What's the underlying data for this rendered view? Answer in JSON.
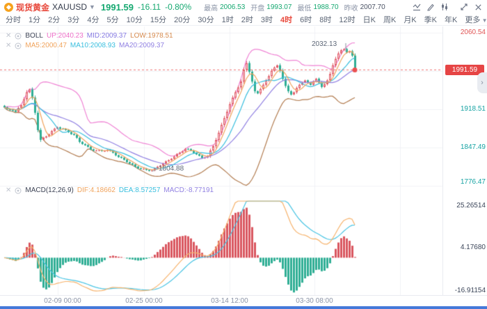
{
  "header": {
    "instrument_cn": "现货黄金",
    "symbol": "XAUUSD",
    "price": "1991.59",
    "change": "-16.11",
    "change_pct": "-0.80%",
    "stats": [
      {
        "label": "最高",
        "value": "2006.53"
      },
      {
        "label": "开盘",
        "value": "1993.07"
      },
      {
        "label": "最低",
        "value": "1988.70"
      },
      {
        "label": "昨收",
        "value": "2007.70"
      }
    ]
  },
  "toolbar": {
    "timeframes": [
      "分时",
      "1分",
      "2分",
      "3分",
      "4分",
      "5分",
      "10分",
      "15分",
      "20分",
      "30分",
      "1时",
      "2时",
      "3时",
      "4时",
      "6时",
      "8时",
      "12时",
      "日K",
      "周K",
      "月K",
      "季K",
      "年K"
    ],
    "active": "4时",
    "more_label": "更多"
  },
  "indicators": {
    "boll": {
      "name": "BOLL",
      "up": "UP:2040.23",
      "mid": "MID:2009.37",
      "low": "LOW:1978.51"
    },
    "ma": {
      "ma5": "MA5:2000.47",
      "ma10": "MA10:2008.93",
      "ma20": "MA20:2009.37"
    },
    "macd": {
      "name": "MACD(12,26,9)",
      "dif": "DIF:4.18662",
      "dea": "DEA:8.57257",
      "macd": "MACD:-8.77191"
    }
  },
  "axes": {
    "price_ticks": [
      "2060.54",
      "1918.51",
      "1847.49",
      "1776.47"
    ],
    "current_price": "1991.59",
    "macd_ticks": [
      "25.26514",
      "4.17680",
      "-16.91154"
    ],
    "time_labels": [
      "02-09 00:00",
      "02-25 00:00",
      "03-14 12:00",
      "03-30 08:00"
    ]
  },
  "annotations": {
    "high_label": "2032.13",
    "low_label": "1804.88"
  },
  "colors": {
    "up": "#e05a66",
    "up_fill": "#f8dfe3",
    "down": "#2fae94",
    "ma5": "#f0a35c",
    "ma10": "#38bede",
    "ma20": "#9181e2",
    "boll_up": "#ef83d4",
    "boll_low": "#b27c50",
    "price_line": "#eb5050",
    "grid": "#f1f2f6",
    "macd_pos": "#d9565f",
    "macd_neg": "#2fae94",
    "dif": "#f6b26b",
    "dea": "#49c4e3"
  },
  "chart_data": [
    {
      "type": "candlestick",
      "title": "现货黄金 XAUUSD 4时",
      "ylim": [
        1776.47,
        2060.54
      ],
      "price_ticks": [
        2060.54,
        1918.51,
        1847.49,
        1776.47
      ],
      "time_labels": [
        "02-09 00:00",
        "02-25 00:00",
        "03-14 12:00",
        "03-30 08:00"
      ],
      "last_price": 1991.59,
      "high_annotation": 2032.13,
      "low_annotation": 1804.88,
      "overlays": {
        "boll": {
          "period": 20,
          "k": 2,
          "up": 2040.23,
          "mid": 2009.37,
          "low": 1978.51
        },
        "ma": {
          "ma5": 2000.47,
          "ma10": 2008.93,
          "ma20": 2009.37
        }
      },
      "closes": [
        1922,
        1919,
        1917,
        1916.5,
        1914,
        1921,
        1926,
        1937,
        1950,
        1955,
        1940,
        1912,
        1880,
        1862,
        1866,
        1868,
        1872,
        1878,
        1882.5,
        1885,
        1882.5,
        1882,
        1880,
        1876,
        1872.5,
        1871,
        1865.5,
        1858,
        1854,
        1852,
        1849,
        1844,
        1842,
        1842,
        1842.5,
        1841,
        1841,
        1843,
        1841.5,
        1838,
        1833,
        1830,
        1828.5,
        1825,
        1820.5,
        1818,
        1816,
        1812,
        1809,
        1808,
        1808,
        1806,
        1804.5,
        1805,
        1809,
        1812,
        1814,
        1818,
        1822,
        1824,
        1826.5,
        1831,
        1835.5,
        1838,
        1840.5,
        1845,
        1844.5,
        1842,
        1837.5,
        1835,
        1832.5,
        1828,
        1829,
        1832,
        1842,
        1850,
        1861.5,
        1875,
        1889.5,
        1902,
        1914,
        1928,
        1940,
        1950,
        1959,
        1970,
        1992,
        2004,
        1988,
        1970,
        1952,
        1948,
        1956,
        1964,
        1972,
        1980,
        1990,
        1996,
        2000,
        1990,
        1975,
        1962,
        1952,
        1946,
        1950,
        1958,
        1964,
        1968,
        1972,
        1968,
        1964,
        1970,
        1975,
        1968,
        1960,
        1965,
        1972,
        1984,
        2000,
        2012,
        2022,
        2028,
        2030,
        2024,
        2026,
        2018,
        1991.6
      ]
    },
    {
      "type": "macd",
      "params": [
        12,
        26,
        9
      ],
      "dif": 4.18662,
      "dea": 8.57257,
      "macd": -8.77191,
      "ylim": [
        -16.91154,
        25.26514
      ],
      "ticks": [
        25.26514,
        4.1768,
        -16.91154
      ]
    }
  ]
}
